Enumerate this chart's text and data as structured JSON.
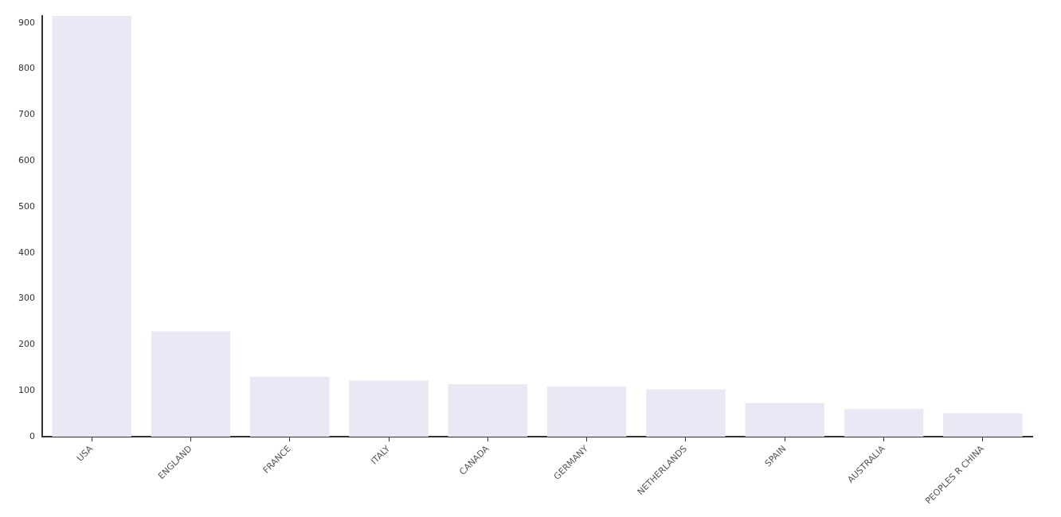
{
  "chart_data": {
    "type": "bar",
    "categories": [
      "USA",
      "ENGLAND",
      "FRANCE",
      "ITALY",
      "CANADA",
      "GERMANY",
      "NETHERLANDS",
      "SPAIN",
      "AUSTRALIA",
      "PEOPLES R CHINA"
    ],
    "values": [
      915,
      229,
      130,
      122,
      114,
      109,
      103,
      73,
      60,
      51
    ],
    "color": "#ebe7f5",
    "ylim": [
      0,
      915
    ],
    "yticks": [
      0,
      100,
      200,
      300,
      400,
      500,
      600,
      700,
      800,
      900
    ],
    "grid": false,
    "legend": false
  }
}
